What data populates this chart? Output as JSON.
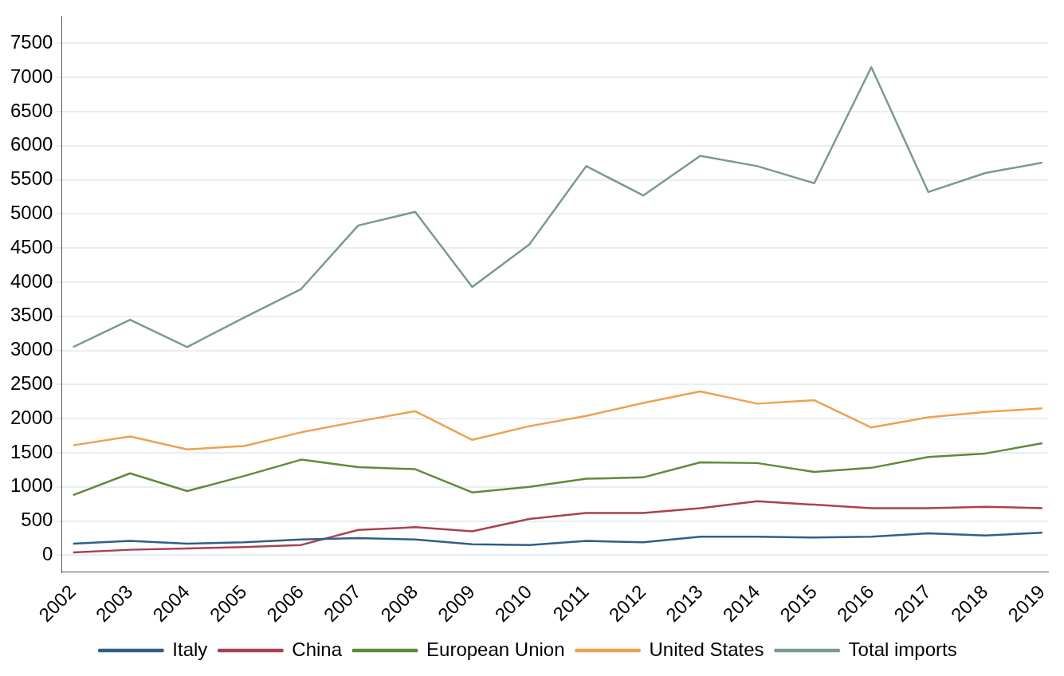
{
  "chart_data": {
    "type": "line",
    "x": [
      2002,
      2003,
      2004,
      2005,
      2006,
      2007,
      2008,
      2009,
      2010,
      2011,
      2012,
      2013,
      2014,
      2015,
      2016,
      2017,
      2018,
      2019
    ],
    "xlim": [
      2001.8,
      2019.1
    ],
    "xticks": [
      2002,
      2003,
      2004,
      2005,
      2006,
      2007,
      2008,
      2009,
      2010,
      2011,
      2012,
      2013,
      2014,
      2015,
      2016,
      2017,
      2018,
      2019
    ],
    "ylim": [
      -250,
      7900
    ],
    "yticks": [
      0,
      500,
      1000,
      1500,
      2000,
      2500,
      3000,
      3500,
      4000,
      4500,
      5000,
      5500,
      6000,
      6500,
      7000,
      7500
    ],
    "grid": "y",
    "legend": "bottom",
    "marker": "none",
    "line_style": "solid",
    "series": [
      {
        "name": "Italy",
        "color": "#2f5f8a",
        "values": [
          170,
          210,
          170,
          190,
          230,
          250,
          230,
          160,
          150,
          210,
          190,
          270,
          270,
          260,
          270,
          320,
          290,
          330
        ]
      },
      {
        "name": "China",
        "color": "#a8424f",
        "values": [
          40,
          80,
          100,
          120,
          150,
          370,
          410,
          350,
          530,
          620,
          620,
          690,
          790,
          740,
          690,
          690,
          710,
          690
        ]
      },
      {
        "name": "European Union",
        "color": "#5f8a3a",
        "values": [
          880,
          1200,
          940,
          1160,
          1400,
          1290,
          1260,
          920,
          1000,
          1120,
          1140,
          1360,
          1350,
          1220,
          1280,
          1440,
          1490,
          1640
        ]
      },
      {
        "name": "United States",
        "color": "#f0a050",
        "values": [
          1610,
          1740,
          1550,
          1600,
          1800,
          1960,
          2110,
          1690,
          1890,
          2040,
          2230,
          2400,
          2220,
          2270,
          1870,
          2020,
          2100,
          2150
        ]
      },
      {
        "name": "Total imports",
        "color": "#7a9a8f",
        "values": [
          3050,
          3450,
          3050,
          3480,
          3900,
          4830,
          5030,
          3930,
          4550,
          5700,
          5270,
          5850,
          5700,
          5450,
          7150,
          5320,
          5600,
          5750
        ]
      }
    ]
  }
}
